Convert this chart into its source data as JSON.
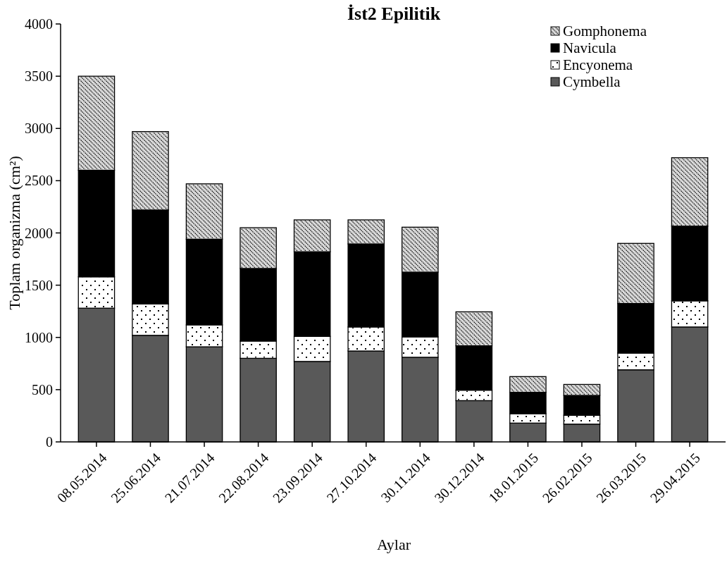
{
  "chart_data": {
    "type": "bar",
    "title": "İst2 Epilitik",
    "xlabel": "Aylar",
    "ylabel": "Toplam organizma (cm²)",
    "categories": [
      "08.05.2014",
      "25.06.2014",
      "21.07.2014",
      "22.08.2014",
      "23.09.2014",
      "27.10.2014",
      "30.11.2014",
      "30.12.2014",
      "18.01.2015",
      "26.02.2015",
      "26.03.2015",
      "29.04.2015"
    ],
    "stacked": true,
    "legend": "top right",
    "ylim": [
      0,
      4000
    ],
    "yticks": [
      0,
      500,
      1000,
      1500,
      2000,
      2500,
      3000,
      3500,
      4000
    ],
    "series": [
      {
        "name": "Cymbella",
        "color": "#595959",
        "values": [
          1280,
          1020,
          910,
          800,
          770,
          870,
          810,
          395,
          180,
          170,
          690,
          1100
        ]
      },
      {
        "name": "Encyonema",
        "color": "#ffffff",
        "values": [
          300,
          300,
          210,
          165,
          240,
          230,
          195,
          100,
          90,
          85,
          160,
          250
        ]
      },
      {
        "name": "Navicula",
        "color": "#000000",
        "values": [
          1020,
          900,
          820,
          695,
          810,
          795,
          620,
          425,
          205,
          190,
          475,
          715
        ]
      },
      {
        "name": "Gomphonema",
        "color": "#d9d9d9",
        "values": [
          900,
          750,
          530,
          390,
          305,
          230,
          430,
          325,
          150,
          105,
          575,
          655
        ]
      }
    ]
  }
}
